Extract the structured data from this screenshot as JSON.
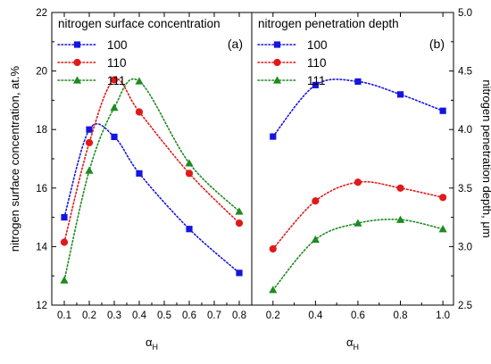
{
  "chart_data": [
    {
      "type": "line",
      "panel_label": "(a)",
      "title": "nitrogen surface concentration",
      "xlabel": "αH",
      "ylabel": "nitrogen surface concentration, at.%",
      "xlim": [
        0.05,
        0.85
      ],
      "ylim": [
        12,
        22
      ],
      "xticks": [
        0.1,
        0.2,
        0.3,
        0.4,
        0.5,
        0.6,
        0.7,
        0.8
      ],
      "xtick_labels": [
        "0.1",
        "0.2",
        "0.3",
        "0.4",
        "0.5",
        "0.6",
        "0.7",
        "0.8"
      ],
      "yticks": [
        12,
        14,
        16,
        18,
        20,
        22
      ],
      "ytick_labels": [
        "12",
        "14",
        "16",
        "18",
        "20",
        "22"
      ],
      "legend_position": "top-left",
      "grid": false,
      "series": [
        {
          "name": "100",
          "marker": "square",
          "color": "#1515e0",
          "x": [
            0.1,
            0.2,
            0.3,
            0.4,
            0.6,
            0.8
          ],
          "y": [
            15.0,
            18.0,
            17.75,
            16.5,
            14.6,
            13.1
          ]
        },
        {
          "name": "110",
          "marker": "circle",
          "color": "#e01a1a",
          "x": [
            0.1,
            0.2,
            0.3,
            0.4,
            0.6,
            0.8
          ],
          "y": [
            14.15,
            17.55,
            19.7,
            18.6,
            16.5,
            14.8
          ]
        },
        {
          "name": "111",
          "marker": "triangle",
          "color": "#1e8a1e",
          "x": [
            0.1,
            0.2,
            0.3,
            0.4,
            0.6,
            0.8
          ],
          "y": [
            12.85,
            16.6,
            18.75,
            19.65,
            16.85,
            15.2
          ]
        }
      ]
    },
    {
      "type": "line",
      "panel_label": "(b)",
      "title": "nitrogen penetration depth",
      "xlabel": "αH",
      "ylabel": "nitrogen penetration depth, μm",
      "xlim": [
        0.1,
        1.05
      ],
      "ylim": [
        2.5,
        5.0
      ],
      "xticks": [
        0.2,
        0.4,
        0.6,
        0.8,
        1.0
      ],
      "xtick_labels": [
        "0.2",
        "0.4",
        "0.6",
        "0.8",
        "1.0"
      ],
      "yticks": [
        2.5,
        3.0,
        3.5,
        4.0,
        4.5,
        5.0
      ],
      "ytick_labels": [
        "2.5",
        "3.0",
        "3.5",
        "4.0",
        "4.5",
        "5.0"
      ],
      "legend_position": "top-left",
      "grid": false,
      "series": [
        {
          "name": "100",
          "marker": "square",
          "color": "#1515e0",
          "x": [
            0.2,
            0.4,
            0.6,
            0.8,
            1.0
          ],
          "y": [
            3.94,
            4.38,
            4.41,
            4.3,
            4.16
          ]
        },
        {
          "name": "110",
          "marker": "circle",
          "color": "#e01a1a",
          "x": [
            0.2,
            0.4,
            0.6,
            0.8,
            1.0
          ],
          "y": [
            2.98,
            3.39,
            3.55,
            3.5,
            3.42
          ]
        },
        {
          "name": "111",
          "marker": "triangle",
          "color": "#1e8a1e",
          "x": [
            0.2,
            0.4,
            0.6,
            0.8,
            1.0
          ],
          "y": [
            2.63,
            3.06,
            3.2,
            3.23,
            3.15
          ]
        }
      ]
    }
  ]
}
